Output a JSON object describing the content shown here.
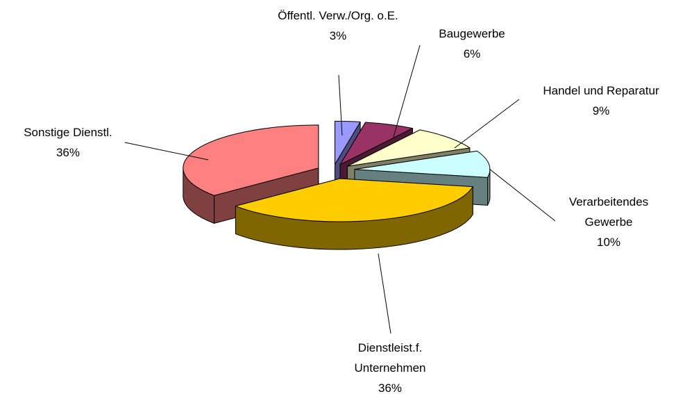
{
  "chart_data": {
    "type": "pie",
    "categories": [
      "Öffentl. Verw./Org. o.E.",
      "Baugewerbe",
      "Handel und Reparatur",
      "Verarbeitendes Gewerbe",
      "Dienstleist.f. Unternehmen",
      "Sonstige Dienstl."
    ],
    "values": [
      3,
      6,
      9,
      10,
      36,
      36
    ],
    "value_labels": [
      "3%",
      "6%",
      "9%",
      "10%",
      "36%",
      "36%"
    ],
    "colors": [
      "#9999ff",
      "#993366",
      "#ffffcc",
      "#ccffff",
      "#ffcc00",
      "#ff8080"
    ]
  }
}
